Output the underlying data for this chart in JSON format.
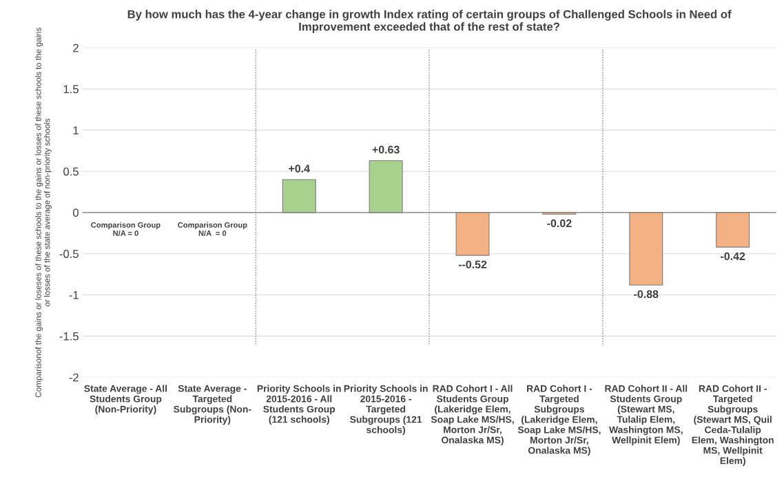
{
  "chart_data": {
    "type": "bar",
    "title": "By how much has the 4-year change in growth Index rating of certain groups of Challenged Schools in Need of\nImprovement exceeded that of the rest of state?",
    "ylabel": "Comparisonof the gains or loseses of these schools to the gains or losses of these schools to the gains\nor losses of the state average of non-priority schools",
    "categories": [
      "State Average - All\nStudents Group\n(Non-Priority)",
      "State Average -\nTargeted\nSubgroups (Non-\nPriority)",
      "Priority Schools in\n2015-2016 - All\nStudents Group\n(121 schools)",
      "Priority Schools in\n2015-2016 -\nTargeted\nSubgroups (121\nschools)",
      "RAD Cohort I - All\nStudents Group\n(Lakeridge Elem,\nSoap Lake MS/HS,\nMorton Jr/Sr,\nOnalaska MS)",
      "RAD Cohort I -\nTargeted\nSubgroups\n(Lakeridge Elem,\nSoap Lake MS/HS,\nMorton Jr/Sr,\nOnalaska MS)",
      "RAD Cohort II - All\nStudents Group\n(Stewart MS,\nTulalip Elem,\nWashington MS,\nWellpinit Elem)",
      "RAD Cohort II -\nTargeted\nSubgroups\n(Stewart MS, Quil\nCeda-Tulalip\nElem, Washington\nMS, Wellpinit\nElem)"
    ],
    "values": [
      0,
      0,
      0.4,
      0.63,
      -0.52,
      -0.02,
      -0.88,
      -0.42
    ],
    "colors": [
      "#a9d18e",
      "#a9d18e",
      "#a9d18e",
      "#a9d18e",
      "#f4b183",
      "#f4b183",
      "#f4b183",
      "#f4b183"
    ],
    "value_labels": [
      null,
      null,
      "+0.4",
      "+0.63",
      "--0.52",
      "-0.02",
      "-0.88",
      "-0.42"
    ],
    "annotations": [
      {
        "text": "Comparison Group\nN/A = 0",
        "x": "State Average - All\nStudents Group\n(Non-Priority)",
        "y": 0
      },
      {
        "text": "Comparison Group\nN/A  = 0",
        "x": "State Average -\nTargeted\nSubgroups (Non-\nPriority)",
        "y": 0
      }
    ],
    "ylim": [
      -2,
      2
    ],
    "yticks": [
      -2,
      -1.5,
      -1,
      -0.5,
      0,
      0.5,
      1,
      1.5,
      2
    ],
    "grid": "y"
  }
}
